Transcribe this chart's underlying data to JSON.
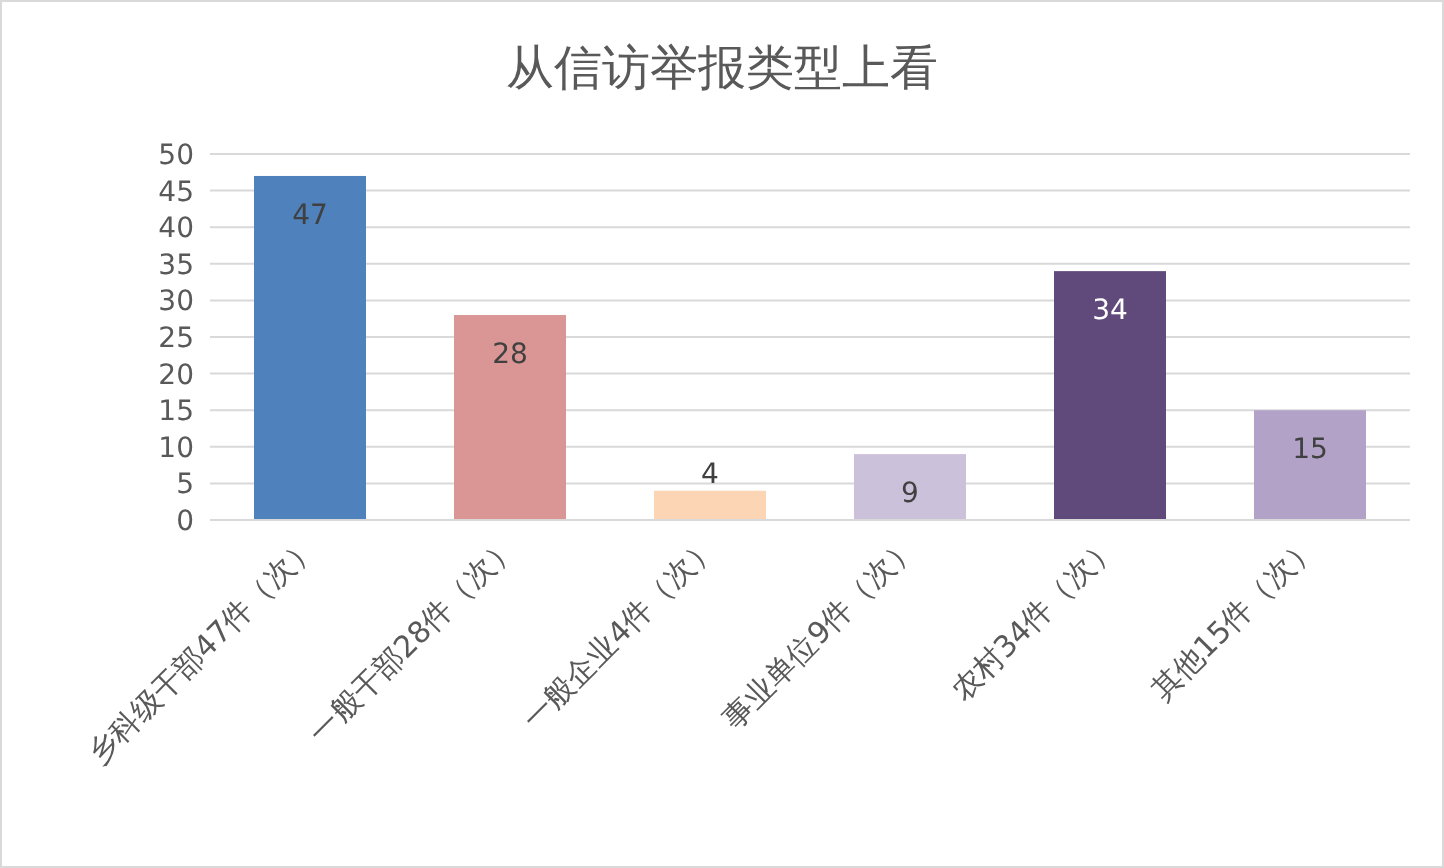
{
  "chart_data": {
    "type": "bar",
    "title": "从信访举报类型上看",
    "categories": [
      "乡科级干部47件（次）",
      "一般干部28件（次）",
      "一般企业4件（次）",
      "事业单位9件（次）",
      "农村34件（次）",
      "其他15件（次）"
    ],
    "values": [
      47,
      28,
      4,
      9,
      34,
      15
    ],
    "colors": [
      "#4f81bd",
      "#d99694",
      "#fcd5b5",
      "#ccc1da",
      "#604a7b",
      "#b3a2c7"
    ],
    "ylim": [
      0,
      50
    ],
    "yticks": [
      0,
      5,
      10,
      15,
      20,
      25,
      30,
      35,
      40,
      45,
      50
    ],
    "grid": "y",
    "data_labels": true
  }
}
